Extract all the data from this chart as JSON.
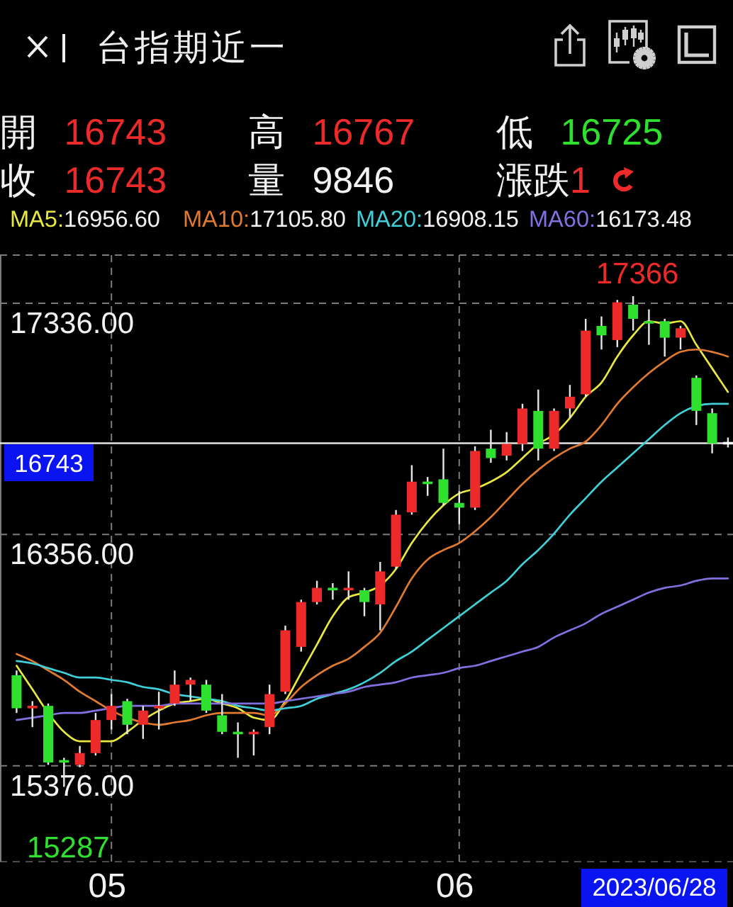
{
  "chart_data": {
    "type": "candlestick",
    "title": "台指期近一",
    "categories": [
      null,
      null,
      null,
      null,
      null,
      null,
      "05",
      null,
      null,
      null,
      null,
      null,
      null,
      null,
      null,
      null,
      null,
      null,
      null,
      null,
      null,
      null,
      null,
      null,
      null,
      null,
      null,
      null,
      "06",
      null,
      null,
      null,
      null,
      null,
      null,
      null,
      null,
      null,
      null,
      null,
      null,
      null,
      null,
      null,
      null,
      null
    ],
    "ohlc": [
      [
        15760,
        15780,
        15600,
        15620
      ],
      [
        15620,
        15650,
        15540,
        15630
      ],
      [
        15630,
        15640,
        15380,
        15390
      ],
      [
        15400,
        15410,
        15287,
        15390
      ],
      [
        15380,
        15460,
        15370,
        15430
      ],
      [
        15430,
        15600,
        15420,
        15570
      ],
      [
        15570,
        15680,
        15530,
        15630
      ],
      [
        15650,
        15660,
        15510,
        15550
      ],
      [
        15550,
        15630,
        15490,
        15610
      ],
      [
        15620,
        15690,
        15530,
        15630
      ],
      [
        15640,
        15780,
        15630,
        15720
      ],
      [
        15720,
        15750,
        15650,
        15740
      ],
      [
        15720,
        15740,
        15600,
        15610
      ],
      [
        15590,
        15680,
        15510,
        15520
      ],
      [
        15520,
        15560,
        15410,
        15510
      ],
      [
        15510,
        15530,
        15420,
        15520
      ],
      [
        15540,
        15720,
        15510,
        15680
      ],
      [
        15690,
        15970,
        15680,
        15950
      ],
      [
        15880,
        16080,
        15860,
        16070
      ],
      [
        16070,
        16160,
        16060,
        16130
      ],
      [
        16130,
        16150,
        16080,
        16120
      ],
      [
        16120,
        16200,
        16080,
        16130
      ],
      [
        16120,
        16130,
        16010,
        16070
      ],
      [
        16060,
        16240,
        15950,
        16200
      ],
      [
        16220,
        16460,
        16210,
        16440
      ],
      [
        16450,
        16650,
        16440,
        16580
      ],
      [
        16580,
        16600,
        16520,
        16570
      ],
      [
        16590,
        16720,
        16480,
        16490
      ],
      [
        16490,
        16540,
        16400,
        16470
      ],
      [
        16470,
        16730,
        16460,
        16710
      ],
      [
        16720,
        16800,
        16660,
        16680
      ],
      [
        16690,
        16790,
        16670,
        16740
      ],
      [
        16740,
        16910,
        16710,
        16890
      ],
      [
        16880,
        16970,
        16670,
        16720
      ],
      [
        16720,
        16890,
        16710,
        16880
      ],
      [
        16890,
        16990,
        16850,
        16940
      ],
      [
        16950,
        17270,
        16940,
        17220
      ],
      [
        17240,
        17280,
        17140,
        17200
      ],
      [
        17180,
        17350,
        17150,
        17340
      ],
      [
        17330,
        17366,
        17220,
        17270
      ],
      [
        17260,
        17310,
        17160,
        17250
      ],
      [
        17260,
        17270,
        17110,
        17190
      ],
      [
        17190,
        17240,
        17140,
        17230
      ],
      [
        17020,
        17030,
        16820,
        16880
      ],
      [
        16870,
        16890,
        16700,
        16742
      ],
      [
        16743,
        16767,
        16725,
        16743
      ]
    ],
    "colors": [
      "#2fe02f",
      "#ec2a2a",
      "#2fe02f",
      "#2fe02f",
      "#ec2a2a",
      "#ec2a2a",
      "#ec2a2a",
      "#2fe02f",
      "#ec2a2a",
      "#ec2a2a",
      "#ec2a2a",
      "#ec2a2a",
      "#2fe02f",
      "#2fe02f",
      "#2fe02f",
      "#ec2a2a",
      "#ec2a2a",
      "#ec2a2a",
      "#ec2a2a",
      "#ec2a2a",
      "#2fe02f",
      "#ec2a2a",
      "#2fe02f",
      "#ec2a2a",
      "#ec2a2a",
      "#ec2a2a",
      "#2fe02f",
      "#2fe02f",
      "#2fe02f",
      "#ec2a2a",
      "#2fe02f",
      "#ec2a2a",
      "#ec2a2a",
      "#2fe02f",
      "#ec2a2a",
      "#ec2a2a",
      "#ec2a2a",
      "#2fe02f",
      "#ec2a2a",
      "#2fe02f",
      "#2fe02f",
      "#2fe02f",
      "#ec2a2a",
      "#2fe02f",
      "#2fe02f",
      "#ffffff"
    ],
    "series": [
      {
        "name": "MA5:16956.60",
        "type": "line",
        "color": "#e8e840",
        "values": [
          15800,
          15700,
          15600,
          15520,
          15480,
          15480,
          15480,
          15520,
          15570,
          15610,
          15640,
          15650,
          15660,
          15640,
          15620,
          15580,
          15570,
          15650,
          15770,
          15890,
          16010,
          16090,
          16110,
          16140,
          16210,
          16320,
          16410,
          16480,
          16530,
          16550,
          16580,
          16620,
          16680,
          16740,
          16780,
          16850,
          16940,
          17000,
          17110,
          17200,
          17260,
          17250,
          17260,
          17160,
          17060,
          16960
        ]
      },
      {
        "name": "MA10:17105.80",
        "type": "line",
        "color": "#e07a30",
        "values": [
          15850,
          15820,
          15780,
          15740,
          15690,
          15650,
          15610,
          15580,
          15560,
          15550,
          15560,
          15570,
          15590,
          15600,
          15600,
          15600,
          15590,
          15640,
          15710,
          15760,
          15800,
          15830,
          15880,
          15940,
          16050,
          16170,
          16250,
          16290,
          16320,
          16370,
          16430,
          16500,
          16570,
          16630,
          16680,
          16720,
          16750,
          16820,
          16910,
          16980,
          17040,
          17090,
          17130,
          17140,
          17130,
          17110
        ]
      },
      {
        "name": "MA20:16908.15",
        "type": "line",
        "color": "#40d0d8",
        "values": [
          15820,
          15810,
          15790,
          15770,
          15750,
          15750,
          15740,
          15730,
          15710,
          15700,
          15680,
          15670,
          15660,
          15650,
          15630,
          15620,
          15610,
          15620,
          15630,
          15660,
          15680,
          15700,
          15730,
          15770,
          15820,
          15860,
          15910,
          15960,
          16010,
          16060,
          16110,
          16160,
          16230,
          16290,
          16360,
          16440,
          16510,
          16580,
          16640,
          16700,
          16760,
          16820,
          16870,
          16900,
          16910,
          16910
        ]
      },
      {
        "name": "MA60:16173.48",
        "type": "line",
        "color": "#8070e0",
        "values": [
          15570,
          15580,
          15590,
          15600,
          15600,
          15610,
          15620,
          15630,
          15630,
          15630,
          15640,
          15640,
          15640,
          15640,
          15640,
          15640,
          15640,
          15650,
          15660,
          15670,
          15680,
          15690,
          15710,
          15720,
          15730,
          15750,
          15760,
          15770,
          15790,
          15800,
          15820,
          15840,
          15860,
          15880,
          15920,
          15950,
          15980,
          16020,
          16050,
          16080,
          16110,
          16130,
          16140,
          16160,
          16170,
          16170
        ]
      }
    ],
    "ylim": [
      14970,
      17540
    ],
    "yticks": [
      {
        "value": 17336,
        "label": "17336.00"
      },
      {
        "value": 16356,
        "label": "16356.00"
      },
      {
        "value": 15376,
        "label": "15376.00"
      }
    ],
    "grid": true,
    "legend": "top left",
    "ref_lines": [
      {
        "axis": "y",
        "value": 16743,
        "label": "16743",
        "color": "#e6e6e6"
      }
    ],
    "annotations": [
      "開 16743",
      "高 16767",
      "低 16725",
      "收 16743",
      "量 9846",
      "漲跌1",
      {
        "text": "17366",
        "y": 17366
      },
      {
        "text": "15287",
        "y": 15287
      },
      "2023/06/28"
    ]
  }
}
